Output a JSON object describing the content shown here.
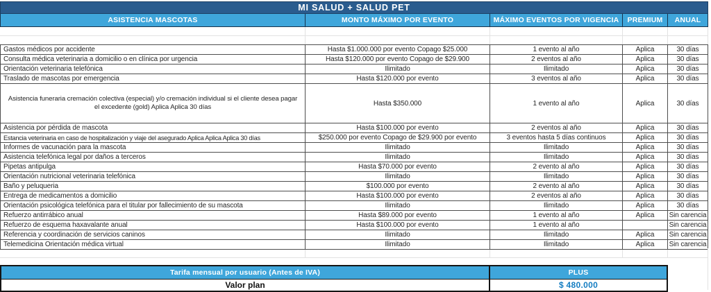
{
  "title": "MI SALUD + SALUD PET",
  "columns": [
    {
      "label": "ASISTENCIA MASCOTAS"
    },
    {
      "label": "MONTO MÁXIMO POR EVENTO"
    },
    {
      "label": "MÁXIMO EVENTOS POR VIGENCIA"
    },
    {
      "label": "PREMIUM"
    },
    {
      "label": "ANUAL"
    }
  ],
  "rows": [
    {
      "name": "Gastos médicos por accidente",
      "monto": "Hasta $1.000.000 por evento Copago $25.000",
      "eventos": "1 evento al año",
      "premium": "Aplica",
      "anual": "30 días",
      "tall": false
    },
    {
      "name": "Consulta médica veterinaria a domicilio o en clínica por urgencia",
      "monto": "Hasta $120.000 por evento Copago de $29.900",
      "eventos": "2 eventos al año",
      "premium": "Aplica",
      "anual": "30 días",
      "tall": false
    },
    {
      "name": "Orientación veterinaria telefónica",
      "monto": "Ilimitado",
      "eventos": "Ilimitado",
      "premium": "Aplica",
      "anual": "30 días",
      "tall": false
    },
    {
      "name": "Traslado de mascotas por emergencia",
      "monto": "Hasta $120.000 por evento",
      "eventos": "3 eventos al año",
      "premium": "Aplica",
      "anual": "30 días",
      "tall": false
    },
    {
      "name": "Asistencia funeraria cremación colectiva (especial) y/o cremación individual si el cliente desea pagar el excedente (gold)   Aplica Aplica 30 días",
      "monto": "Hasta $350.000",
      "eventos": "1 evento al año",
      "premium": "Aplica",
      "anual": "30 días",
      "tall": true
    },
    {
      "name": "Asistencia por pérdida de mascota",
      "monto": "Hasta $100.000 por evento",
      "eventos": "2 eventos al año",
      "premium": "Aplica",
      "anual": "30 días",
      "tall": false
    },
    {
      "name": "Estancia veterinaria en caso de hospitalización y viaje del asegurado  Aplica Aplica Aplica 30 días",
      "monto": "$250.000 por evento Copago de $29.900 por evento",
      "eventos": "3 eventos hasta 5 días continuos",
      "premium": "Aplica",
      "anual": "30 días",
      "tall": false
    },
    {
      "name": "Informes de vacunación para la mascota",
      "monto": "Ilimitado",
      "eventos": "Ilimitado",
      "premium": "Aplica",
      "anual": "30 días",
      "tall": false
    },
    {
      "name": "Asistencia telefónica legal por daños a terceros",
      "monto": "Ilimitado",
      "eventos": "Ilimitado",
      "premium": "Aplica",
      "anual": "30 días",
      "tall": false
    },
    {
      "name": "Pipetas antipulga",
      "monto": "Hasta $70.000 por evento",
      "eventos": "2 evento al año",
      "premium": "Aplica",
      "anual": "30 días",
      "tall": false
    },
    {
      "name": "Orientación nutricional veterinaria telefónica",
      "monto": "Ilimitado",
      "eventos": "Ilimitado",
      "premium": "Aplica",
      "anual": "30 días",
      "tall": false
    },
    {
      "name": "Baño y peluqueria",
      "monto": "$100.000 por evento",
      "eventos": "2 evento al año",
      "premium": "Aplica",
      "anual": "30 días",
      "tall": false
    },
    {
      "name": "Entrega de medicamentos a domicilio",
      "monto": "Hasta $100.000 por evento",
      "eventos": "2 eventos al año",
      "premium": "Aplica",
      "anual": "30 días",
      "tall": false
    },
    {
      "name": "Orientación psicológica telefónica para el titular por fallecimiento de su mascota",
      "monto": "Ilimitado",
      "eventos": "Ilimitado",
      "premium": "Aplica",
      "anual": "30 días",
      "tall": false
    },
    {
      "name": "Refuerzo antirrábico anual",
      "monto": "Hasta $89.000 por evento",
      "eventos": "1 evento al año",
      "premium": "Aplica",
      "anual": "Sin carencia",
      "tall": false
    },
    {
      "name": "Refuerzo de esquema haxavalante anual",
      "monto": "Hasta $100.000 por evento",
      "eventos": "1 evento al año",
      "premium": "",
      "anual": "Sin carencia",
      "tall": false
    },
    {
      "name": "Referencia y coordinación de servicios caninos",
      "monto": "Ilimitado",
      "eventos": "Ilimitado",
      "premium": "Aplica",
      "anual": "Sin carencia",
      "tall": false
    },
    {
      "name": "Telemedicina Orientación médica virtual",
      "monto": "Ilimitado",
      "eventos": "Ilimitado",
      "premium": "Aplica",
      "anual": "Sin carencia",
      "tall": false
    }
  ],
  "footer": {
    "tarifa_label": "Tarifa mensual por usuario (Antes de IVA)",
    "plan_label": "PLUS",
    "valor_label": "Valor plan",
    "valor_value": "$ 480.000"
  },
  "colors": {
    "dark_blue": "#2A5C8E",
    "light_blue": "#3FA6DB",
    "value_blue": "#147DC2",
    "grid_dark": "#4d4d4d",
    "grid_faint": "#e2e2e2"
  }
}
